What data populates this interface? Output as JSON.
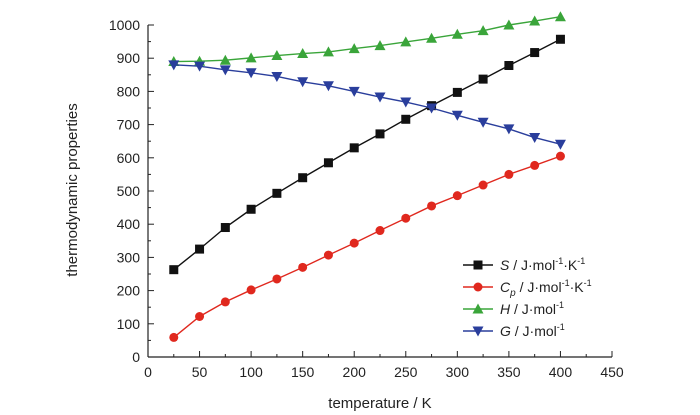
{
  "chart_data": {
    "type": "line",
    "xlabel": "temperature / K",
    "ylabel": "thermodynamic properties",
    "xlim": [
      0,
      450
    ],
    "ylim": [
      0,
      1000
    ],
    "xticks": [
      0,
      50,
      100,
      150,
      200,
      250,
      300,
      350,
      400,
      450
    ],
    "yticks": [
      0,
      100,
      200,
      300,
      400,
      500,
      600,
      700,
      800,
      900,
      1000
    ],
    "grid": false,
    "legend_position": "lower-right",
    "x": [
      25,
      50,
      75,
      100,
      125,
      150,
      175,
      200,
      225,
      250,
      275,
      300,
      325,
      350,
      375,
      400
    ],
    "series": [
      {
        "key": "S",
        "symbol": "S",
        "unit": " / J·mol",
        "unit_sup1": "-1",
        "unit_mid": "·K",
        "unit_sup2": "-1",
        "color": "#111111",
        "marker": "square",
        "values": [
          263,
          325,
          390,
          445,
          493,
          540,
          585,
          630,
          672,
          716,
          757,
          797,
          837,
          878,
          917,
          957
        ]
      },
      {
        "key": "Cp",
        "symbol": "C",
        "symbol_sub": "p",
        "unit": " / J·mol",
        "unit_sup1": "-1",
        "unit_mid": "·K",
        "unit_sup2": "-1",
        "color": "#e0281e",
        "marker": "circle",
        "values": [
          59,
          122,
          166,
          202,
          235,
          270,
          307,
          343,
          381,
          418,
          455,
          486,
          518,
          550,
          577,
          605
        ]
      },
      {
        "key": "H",
        "symbol": "H",
        "unit": " / J·mol",
        "unit_sup1": "-1",
        "unit_mid": "",
        "unit_sup2": "",
        "color": "#3aa53a",
        "marker": "triangle-up",
        "values": [
          890,
          891,
          894,
          901,
          908,
          914,
          919,
          929,
          938,
          949,
          960,
          972,
          983,
          1000,
          1012,
          1025
        ]
      },
      {
        "key": "G",
        "symbol": "G",
        "unit": " / J·mol",
        "unit_sup1": "-1",
        "unit_mid": "",
        "unit_sup2": "",
        "color": "#2a3e9c",
        "marker": "triangle-down",
        "values": [
          880,
          876,
          865,
          856,
          845,
          829,
          817,
          800,
          783,
          768,
          750,
          728,
          707,
          687,
          661,
          641
        ]
      }
    ]
  }
}
